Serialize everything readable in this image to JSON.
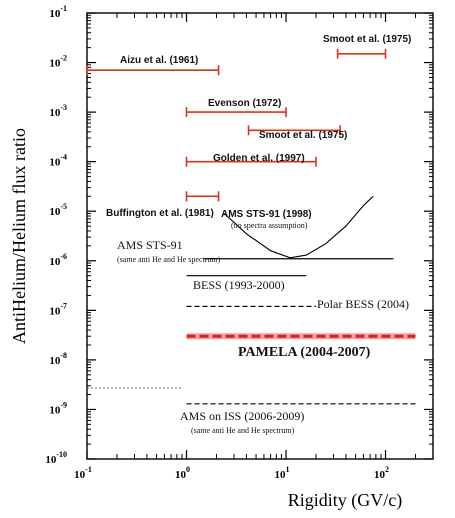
{
  "chart_data": {
    "type": "scatter",
    "title": "",
    "xlabel": "Rigidity (GV/c)",
    "ylabel": "AntiHelium/Helium flux ratio",
    "xscale": "log",
    "yscale": "log",
    "xlim": [
      0.1,
      300
    ],
    "ylim": [
      1e-10,
      0.1
    ],
    "grid": false,
    "x_ticks": [
      {
        "v": 0.1,
        "m": "10",
        "e": "-1"
      },
      {
        "v": 1,
        "m": "10",
        "e": "0"
      },
      {
        "v": 10,
        "m": "10",
        "e": "1"
      },
      {
        "v": 100,
        "m": "10",
        "e": "2"
      }
    ],
    "y_ticks": [
      {
        "v": 1e-10,
        "m": "10",
        "e": "-10"
      },
      {
        "v": 1e-09,
        "m": "10",
        "e": "-9"
      },
      {
        "v": 1e-08,
        "m": "10",
        "e": "-8"
      },
      {
        "v": 1e-07,
        "m": "10",
        "e": "-7"
      },
      {
        "v": 1e-06,
        "m": "10",
        "e": "-6"
      },
      {
        "v": 1e-05,
        "m": "10",
        "e": "-5"
      },
      {
        "v": 0.0001,
        "m": "10",
        "e": "-4"
      },
      {
        "v": 0.001,
        "m": "10",
        "e": "-3"
      },
      {
        "v": 0.01,
        "m": "10",
        "e": "-2"
      },
      {
        "v": 0.1,
        "m": "10",
        "e": "-1"
      }
    ],
    "limits": [
      {
        "id": "smoot-1975-a",
        "label": "Smoot et al. (1975)",
        "x": [
          33,
          100
        ],
        "y": 0.015,
        "color": "#d9341c",
        "style": "errorbar"
      },
      {
        "id": "aizu-1961",
        "label": "Aizu et al. (1961)",
        "x": [
          0.1,
          2.1
        ],
        "y": 0.007,
        "color": "#d9341c",
        "style": "errorbar"
      },
      {
        "id": "evenson-1972",
        "label": "Evenson (1972)",
        "x": [
          1,
          10
        ],
        "y": 0.001,
        "color": "#d9341c",
        "style": "errorbar"
      },
      {
        "id": "smoot-1975-b",
        "label": "Smoot et al. (1975)",
        "x": [
          4.2,
          35
        ],
        "y": 0.00043,
        "color": "#d9341c",
        "style": "errorbar"
      },
      {
        "id": "golden-1997",
        "label": "Golden et al. (1997)",
        "x": [
          1,
          20
        ],
        "y": 0.0001,
        "color": "#d9341c",
        "style": "errorbar"
      },
      {
        "id": "buffington-1981",
        "label": "Buffington et al. (1981)",
        "x": [
          1,
          2.1
        ],
        "y": 2e-05,
        "color": "#d9341c",
        "style": "errorbar"
      },
      {
        "id": "ams-sts91-flat",
        "label": "AMS STS-91",
        "note": "(same anti He and He spectrum)",
        "x": [
          1.5,
          120
        ],
        "y": 1.1e-06,
        "color": "#000000",
        "style": "solid"
      },
      {
        "id": "bess-1993-2000",
        "label": "BESS (1993-2000)",
        "x": [
          1,
          16
        ],
        "y": 5e-07,
        "color": "#000000",
        "style": "solid"
      },
      {
        "id": "polar-bess-2004",
        "label": "Polar BESS (2004)",
        "x": [
          1,
          20
        ],
        "y": 1.2e-07,
        "color": "#000000",
        "style": "dashed"
      },
      {
        "id": "pamela-2004-2007",
        "label": "PAMELA (2004-2007)",
        "x": [
          1,
          200
        ],
        "y": 3e-08,
        "color": "#e02020",
        "style": "thick-dashed"
      },
      {
        "id": "pamela-low",
        "label": "",
        "x": [
          0.1,
          0.9
        ],
        "y": 2.7e-09,
        "color": "#000000",
        "style": "dashed-thin"
      },
      {
        "id": "ams-iss-2006-2009",
        "label": "AMS on ISS (2006-2009)",
        "note": "(same anti He and He spectrum)",
        "x": [
          1,
          200
        ],
        "y": 1.3e-09,
        "color": "#000000",
        "style": "dashed"
      }
    ],
    "curves": [
      {
        "id": "ams-sts91-curve",
        "label": "AMS STS-91 (1998)",
        "note": "(no spectra assumption)",
        "color": "#000000",
        "points": [
          [
            2.4,
            9e-06
          ],
          [
            4,
            3.5e-06
          ],
          [
            7,
            1.6e-06
          ],
          [
            11,
            1.15e-06
          ],
          [
            16,
            1.3e-06
          ],
          [
            25,
            2.2e-06
          ],
          [
            40,
            5e-06
          ],
          [
            60,
            1.3e-05
          ],
          [
            75,
            2e-05
          ]
        ]
      }
    ],
    "annotations": {
      "smoot-1975-a": "Smoot et al. (1975)",
      "aizu-1961": "Aizu et al. (1961)",
      "evenson-1972": "Evenson (1972)",
      "smoot-1975-b": "Smoot et al. (1975)",
      "golden-1997": "Golden et al. (1997)",
      "buffington-1981": "Buffington et al. (1981)",
      "ams-sts91-curve": "AMS STS-91 (1998)",
      "ams-sts91-curve-note": "(no spectra assumption)",
      "ams-sts91-flat": "AMS STS-91",
      "ams-sts91-flat-note": "(same anti He and He spectrum)",
      "bess-1993-2000": "BESS (1993-2000)",
      "polar-bess-2004": "Polar BESS (2004)",
      "pamela-2004-2007": "PAMELA (2004-2007)",
      "ams-iss-2006-2009": "AMS on ISS (2006-2009)",
      "ams-iss-2006-2009-note": "(same anti He and He spectrum)"
    }
  }
}
